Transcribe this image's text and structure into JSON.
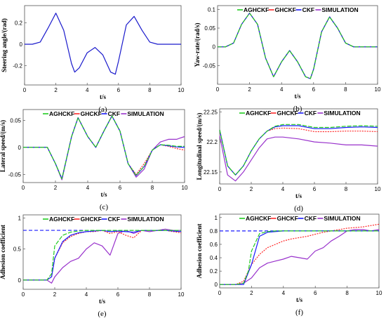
{
  "figure": {
    "colors": {
      "AGHCKF": "#22cc22",
      "GHCKF": "#ff2a2a",
      "CKF": "#1a1aff",
      "SIMULATION": "#9932cc",
      "steering": "#1a1acc",
      "reference": "#1a1aff"
    }
  },
  "chart_data": [
    {
      "type": "line",
      "panel": "(a)",
      "xlabel": "t/s",
      "ylabel": "Steering angle/(rad)",
      "xlim": [
        0,
        10
      ],
      "ylim": [
        -0.38,
        0.36
      ],
      "xticks": [
        0,
        2,
        4,
        6,
        8,
        10
      ],
      "yticks": [
        -0.2,
        0,
        0.2
      ],
      "legend": [],
      "series": [
        {
          "key": "steering",
          "x": [
            0,
            0.5,
            1,
            1.5,
            2,
            2.5,
            3,
            3.2,
            3.5,
            4,
            4.5,
            5,
            5.5,
            5.8,
            6,
            6.5,
            7,
            7.5,
            8,
            8.5,
            9,
            9.5,
            10
          ],
          "values": [
            0,
            0,
            0.02,
            0.15,
            0.29,
            0.13,
            -0.18,
            -0.26,
            -0.22,
            -0.08,
            -0.03,
            -0.1,
            -0.26,
            -0.28,
            -0.16,
            0.18,
            0.26,
            0.13,
            0.02,
            0,
            0,
            0,
            0
          ]
        }
      ]
    },
    {
      "type": "line",
      "panel": "(b)",
      "xlabel": "t/s",
      "ylabel": "Yaw-rate/(rad/s)",
      "xlim": [
        0,
        10
      ],
      "ylim": [
        -0.1,
        0.11
      ],
      "xticks": [
        0,
        2,
        4,
        6,
        8,
        10
      ],
      "yticks": [
        -0.05,
        0,
        0.05,
        0.1
      ],
      "legend": [
        "AGHCKF",
        "GHCKF",
        "CKF",
        "SIMULATION"
      ],
      "series": [
        {
          "key": "SIMULATION",
          "x": [
            0,
            0.5,
            1,
            1.5,
            2,
            2.5,
            3,
            3.5,
            4,
            4.5,
            5,
            5.5,
            5.8,
            6,
            6.5,
            7,
            7.5,
            8,
            8.5,
            9,
            9.5,
            10
          ],
          "values": [
            0,
            0,
            0.01,
            0.06,
            0.09,
            0.06,
            -0.03,
            -0.08,
            -0.04,
            -0.01,
            -0.04,
            -0.08,
            -0.085,
            -0.06,
            0.04,
            0.08,
            0.05,
            0.01,
            0,
            0,
            0,
            0
          ]
        },
        {
          "key": "GHCKF",
          "x": [
            0,
            0.5,
            1,
            1.5,
            2,
            2.5,
            3,
            3.5,
            4,
            4.5,
            5,
            5.5,
            5.8,
            6,
            6.5,
            7,
            7.5,
            8,
            8.5,
            9,
            9.5,
            10
          ],
          "values": [
            0,
            0,
            0.01,
            0.06,
            0.09,
            0.06,
            -0.03,
            -0.08,
            -0.04,
            -0.01,
            -0.04,
            -0.08,
            -0.085,
            -0.06,
            0.04,
            0.08,
            0.05,
            0.01,
            0,
            0,
            0,
            0
          ]
        },
        {
          "key": "CKF",
          "x": [
            0,
            0.5,
            1,
            1.5,
            2,
            2.5,
            3,
            3.5,
            4,
            4.5,
            5,
            5.5,
            5.8,
            6,
            6.5,
            7,
            7.5,
            8,
            8.5,
            9,
            9.5,
            10
          ],
          "values": [
            0,
            0,
            0.01,
            0.06,
            0.09,
            0.06,
            -0.03,
            -0.08,
            -0.04,
            -0.01,
            -0.04,
            -0.08,
            -0.085,
            -0.06,
            0.04,
            0.08,
            0.05,
            0.01,
            0,
            0,
            0,
            0
          ]
        },
        {
          "key": "AGHCKF",
          "x": [
            0,
            0.5,
            1,
            1.5,
            2,
            2.5,
            3,
            3.5,
            4,
            4.5,
            5,
            5.5,
            5.8,
            6,
            6.5,
            7,
            7.5,
            8,
            8.5,
            9,
            9.5,
            10
          ],
          "values": [
            0,
            0,
            0.01,
            0.06,
            0.09,
            0.06,
            -0.03,
            -0.08,
            -0.04,
            -0.01,
            -0.04,
            -0.08,
            -0.085,
            -0.06,
            0.04,
            0.08,
            0.05,
            0.01,
            0,
            0,
            0,
            0
          ]
        }
      ]
    },
    {
      "type": "line",
      "panel": "(c)",
      "xlabel": "t/s",
      "ylabel": "Lateral speed/(m/s)",
      "xlim": [
        0,
        10
      ],
      "ylim": [
        -0.065,
        0.07
      ],
      "xticks": [
        0,
        2,
        4,
        6,
        8,
        10
      ],
      "yticks": [
        -0.05,
        0,
        0.05
      ],
      "legend": [
        "AGHCKF",
        "GHCKF",
        "CKF",
        "SIMULATION"
      ],
      "series": [
        {
          "key": "SIMULATION",
          "x": [
            0,
            1,
            1.5,
            2,
            2.4,
            3,
            3.4,
            4,
            4.5,
            5,
            5.5,
            6,
            6.5,
            7,
            7.5,
            8,
            8.5,
            9,
            9.5,
            10
          ],
          "values": [
            0,
            0,
            0,
            -0.03,
            -0.06,
            0.02,
            0.055,
            0.02,
            0,
            0.03,
            0.058,
            0.03,
            -0.03,
            -0.055,
            -0.04,
            -0.005,
            0.01,
            0.015,
            0.015,
            0.02
          ]
        },
        {
          "key": "GHCKF",
          "x": [
            0,
            1,
            1.5,
            2,
            2.4,
            3,
            3.4,
            4,
            4.5,
            5,
            5.5,
            6,
            6.5,
            7,
            7.5,
            8,
            8.5,
            9,
            9.5,
            10
          ],
          "values": [
            0,
            0,
            0,
            -0.03,
            -0.058,
            0.02,
            0.055,
            0.02,
            0,
            0.03,
            0.058,
            0.03,
            -0.03,
            -0.05,
            -0.03,
            -0.005,
            0.005,
            0.002,
            -0.002,
            -0.005
          ]
        },
        {
          "key": "CKF",
          "x": [
            0,
            1,
            1.5,
            2,
            2.4,
            3,
            3.4,
            4,
            4.5,
            5,
            5.5,
            6,
            6.5,
            7,
            7.5,
            8,
            8.5,
            9,
            9.5,
            10
          ],
          "values": [
            0,
            0,
            0,
            -0.03,
            -0.058,
            0.02,
            0.055,
            0.02,
            0,
            0.03,
            0.058,
            0.03,
            -0.03,
            -0.052,
            -0.035,
            -0.005,
            0.005,
            0.003,
            0.001,
            0
          ]
        },
        {
          "key": "AGHCKF",
          "x": [
            0,
            1,
            1.5,
            2,
            2.4,
            3,
            3.4,
            4,
            4.5,
            5,
            5.5,
            6,
            6.5,
            7,
            7.5,
            8,
            8.5,
            9,
            9.5,
            10
          ],
          "values": [
            0,
            0,
            0,
            -0.03,
            -0.058,
            0.02,
            0.055,
            0.02,
            0,
            0.03,
            0.058,
            0.03,
            -0.03,
            -0.052,
            -0.035,
            -0.005,
            0.005,
            0.004,
            0.002,
            0.002
          ]
        }
      ]
    },
    {
      "type": "line",
      "panel": "(d)",
      "xlabel": "t/s",
      "ylabel": "Longitudinal speed/(m/s)",
      "xlim": [
        0,
        10
      ],
      "ylim": [
        22.13,
        22.255
      ],
      "xticks": [
        0,
        2,
        4,
        6,
        8,
        10
      ],
      "yticks": [
        22.15,
        22.2,
        22.25
      ],
      "legend": [
        "AGHCKF",
        "GHCKF",
        "CKF",
        "SIMULATION"
      ],
      "series": [
        {
          "key": "SIMULATION",
          "x": [
            0,
            0.5,
            1,
            1.5,
            2,
            2.5,
            3,
            3.5,
            4,
            5,
            6,
            7,
            8,
            9,
            10
          ],
          "values": [
            22.21,
            22.145,
            22.135,
            22.15,
            22.17,
            22.19,
            22.205,
            22.208,
            22.208,
            22.205,
            22.2,
            22.198,
            22.195,
            22.195,
            22.193
          ]
        },
        {
          "key": "GHCKF",
          "x": [
            0,
            0.5,
            1,
            1.5,
            2,
            2.5,
            3,
            3.5,
            4,
            5,
            6,
            7,
            8,
            9,
            10
          ],
          "values": [
            22.22,
            22.16,
            22.145,
            22.16,
            22.185,
            22.205,
            22.218,
            22.222,
            22.223,
            22.222,
            22.217,
            22.217,
            22.218,
            22.218,
            22.217
          ]
        },
        {
          "key": "CKF",
          "x": [
            0,
            0.5,
            1,
            1.5,
            2,
            2.5,
            3,
            3.5,
            4,
            5,
            6,
            7,
            8,
            9,
            10
          ],
          "values": [
            22.22,
            22.16,
            22.145,
            22.16,
            22.185,
            22.205,
            22.218,
            22.225,
            22.227,
            22.227,
            22.222,
            22.222,
            22.224,
            22.225,
            22.224
          ]
        },
        {
          "key": "AGHCKF",
          "x": [
            0,
            0.5,
            1,
            1.5,
            2,
            2.5,
            3,
            3.5,
            4,
            5,
            6,
            7,
            8,
            9,
            10
          ],
          "values": [
            22.22,
            22.16,
            22.145,
            22.16,
            22.185,
            22.205,
            22.218,
            22.226,
            22.229,
            22.229,
            22.224,
            22.224,
            22.226,
            22.227,
            22.226
          ]
        }
      ]
    },
    {
      "type": "line",
      "panel": "(e)",
      "xlabel": "t/s",
      "ylabel": "Adhesion coefficient",
      "xlim": [
        0,
        10
      ],
      "ylim": [
        -0.15,
        1.05
      ],
      "xticks": [
        0,
        2,
        4,
        6,
        8,
        10
      ],
      "yticks": [
        0,
        0.5,
        1
      ],
      "legend": [
        "AGHCKF",
        "GHCKF",
        "CKF",
        "SIMULATION"
      ],
      "reference": {
        "key": "reference",
        "value": 0.8
      },
      "series": [
        {
          "key": "SIMULATION",
          "x": [
            0,
            1,
            1.5,
            1.8,
            2,
            2.5,
            3,
            3.5,
            4,
            4.5,
            5,
            5.5,
            6,
            6.5,
            7,
            7.5,
            8,
            8.5,
            9,
            9.5,
            10
          ],
          "values": [
            0,
            0,
            0,
            -0.05,
            0.05,
            0.2,
            0.3,
            0.35,
            0.5,
            0.6,
            0.55,
            0.4,
            0.75,
            0.8,
            0.75,
            0.8,
            0.78,
            0.8,
            0.82,
            0.8,
            0.8
          ]
        },
        {
          "key": "GHCKF",
          "x": [
            0,
            1,
            1.5,
            1.8,
            2,
            2.5,
            3,
            3.5,
            4,
            4.5,
            5,
            5.5,
            6,
            6.5,
            7,
            7.5,
            8,
            8.5,
            9,
            9.5,
            10
          ],
          "values": [
            0,
            0,
            0,
            0.05,
            0.35,
            0.6,
            0.7,
            0.75,
            0.78,
            0.78,
            0.8,
            0.75,
            0.78,
            0.72,
            0.68,
            0.8,
            0.8,
            0.8,
            0.8,
            0.78,
            0.76
          ]
        },
        {
          "key": "CKF",
          "x": [
            0,
            1,
            1.5,
            1.8,
            2,
            2.5,
            3,
            3.5,
            4,
            4.5,
            5,
            5.5,
            6,
            6.5,
            7,
            7.5,
            8,
            8.5,
            9,
            9.5,
            10
          ],
          "values": [
            0,
            0,
            0,
            0.05,
            0.35,
            0.62,
            0.72,
            0.76,
            0.78,
            0.79,
            0.8,
            0.78,
            0.79,
            0.78,
            0.77,
            0.8,
            0.8,
            0.8,
            0.8,
            0.79,
            0.78
          ]
        },
        {
          "key": "AGHCKF",
          "x": [
            0,
            1,
            1.5,
            1.8,
            2,
            2.5,
            3,
            3.5,
            4,
            4.5,
            5,
            5.5,
            6,
            6.5,
            7,
            7.5,
            8,
            8.5,
            9,
            9.5,
            10
          ],
          "values": [
            0,
            0,
            0,
            0.1,
            0.55,
            0.72,
            0.77,
            0.79,
            0.8,
            0.8,
            0.8,
            0.8,
            0.8,
            0.8,
            0.8,
            0.8,
            0.8,
            0.8,
            0.8,
            0.8,
            0.8
          ]
        }
      ]
    },
    {
      "type": "line",
      "panel": "(f)",
      "xlabel": "t/s",
      "ylabel": "Adhesion coefficient",
      "xlim": [
        0,
        10
      ],
      "ylim": [
        -0.05,
        1.05
      ],
      "xticks": [
        0,
        2,
        4,
        6,
        8,
        10
      ],
      "yticks": [
        0,
        0.2,
        0.4,
        0.6,
        0.8,
        1
      ],
      "legend": [
        "AGHCKF",
        "GHCKF",
        "CKF",
        "SIMULATION"
      ],
      "reference": {
        "key": "reference",
        "value": 0.8
      },
      "series": [
        {
          "key": "SIMULATION",
          "x": [
            0,
            1,
            1.5,
            2,
            2.5,
            3,
            3.5,
            4,
            4.5,
            5,
            5.5,
            6,
            6.5,
            7,
            7.5,
            8,
            8.5,
            9,
            9.5,
            10
          ],
          "values": [
            0,
            0,
            0.02,
            0.1,
            0.25,
            0.32,
            0.35,
            0.38,
            0.42,
            0.4,
            0.38,
            0.5,
            0.55,
            0.65,
            0.72,
            0.8,
            0.82,
            0.82,
            0.8,
            0.82
          ]
        },
        {
          "key": "GHCKF",
          "x": [
            0,
            1,
            1.5,
            2,
            2.5,
            3,
            3.5,
            4,
            4.5,
            5,
            5.5,
            6,
            6.5,
            7,
            7.5,
            8,
            8.5,
            9,
            9.5,
            10
          ],
          "values": [
            0,
            0,
            0.05,
            0.3,
            0.45,
            0.55,
            0.6,
            0.65,
            0.68,
            0.7,
            0.72,
            0.75,
            0.78,
            0.8,
            0.82,
            0.84,
            0.85,
            0.86,
            0.88,
            0.9
          ]
        },
        {
          "key": "CKF",
          "x": [
            0,
            1,
            1.5,
            2,
            2.5,
            3,
            3.5,
            4,
            4.5,
            5,
            5.5,
            6,
            6.5,
            7,
            7.5,
            8,
            8.5,
            9,
            9.5,
            10
          ],
          "values": [
            0,
            0,
            0,
            0.3,
            0.72,
            0.78,
            0.79,
            0.8,
            0.8,
            0.8,
            0.8,
            0.8,
            0.8,
            0.8,
            0.8,
            0.8,
            0.8,
            0.8,
            0.8,
            0.8
          ]
        },
        {
          "key": "AGHCKF",
          "x": [
            0,
            1,
            1.5,
            1.8,
            2,
            2.5,
            3,
            3.5,
            4,
            4.5,
            5,
            5.5,
            6,
            6.5,
            7,
            7.5,
            8,
            8.5,
            9,
            9.5,
            10
          ],
          "values": [
            0,
            0,
            0.02,
            0.2,
            0.5,
            0.76,
            0.79,
            0.8,
            0.8,
            0.8,
            0.8,
            0.8,
            0.8,
            0.8,
            0.8,
            0.8,
            0.8,
            0.8,
            0.8,
            0.8,
            0.8
          ]
        }
      ]
    }
  ]
}
